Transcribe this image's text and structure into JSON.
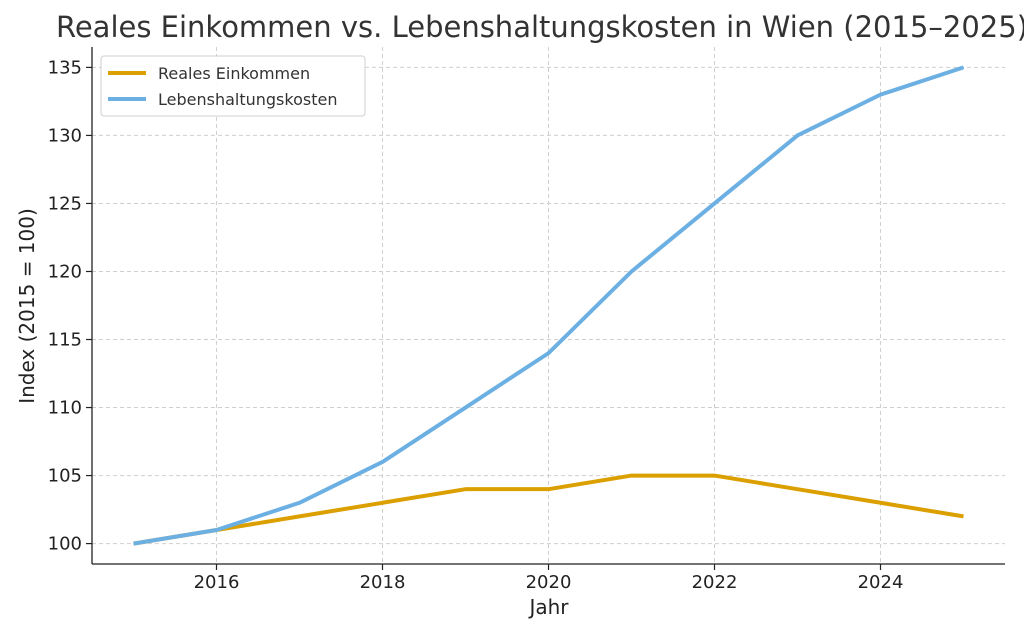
{
  "chart_data": {
    "type": "line",
    "title": "Reales Einkommen vs. Lebenshaltungskosten in Wien (2015–2025)",
    "xlabel": "Jahr",
    "ylabel": "Index (2015 = 100)",
    "x": [
      2015,
      2016,
      2017,
      2018,
      2019,
      2020,
      2021,
      2022,
      2023,
      2024,
      2025
    ],
    "xlim": [
      2014.5,
      2025.5
    ],
    "ylim": [
      98.5,
      136.5
    ],
    "x_ticks": [
      2016,
      2018,
      2020,
      2022,
      2024
    ],
    "y_ticks": [
      100,
      105,
      110,
      115,
      120,
      125,
      130,
      135
    ],
    "grid": true,
    "legend_position": "top-left",
    "series": [
      {
        "name": "Reales Einkommen",
        "color": "#DBA000",
        "values": [
          100,
          101,
          102,
          103,
          104,
          104,
          105,
          105,
          104,
          103,
          102
        ]
      },
      {
        "name": "Lebenshaltungskosten",
        "color": "#6CB0E3",
        "values": [
          100,
          101,
          103,
          106,
          110,
          114,
          120,
          125,
          130,
          133,
          135
        ]
      }
    ]
  }
}
